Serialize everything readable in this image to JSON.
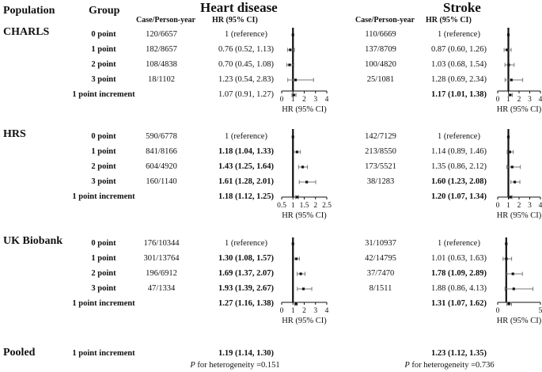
{
  "headers": {
    "population": "Population",
    "group": "Group",
    "heart_title": "Heart disease",
    "stroke_title": "Stroke",
    "case_label": "Case/Person-year",
    "hr_label": "HR (95% CI)"
  },
  "pooled": {
    "population": "Pooled",
    "group": "1 point increment",
    "heart_hr": "1.19 (1.14, 1.30)",
    "stroke_hr": "1.23 (1.12, 1.35)",
    "p_symbol": "P",
    "heart_het": " for heterogeneity =0.151",
    "stroke_het": " for heterogeneity =0.736"
  },
  "chart_data": [
    {
      "type": "forest",
      "panel": "heart-CHARLS",
      "xlabel": "HR (95% CI)",
      "xlim": [
        0,
        4
      ],
      "ticks": [
        0,
        1,
        2,
        3,
        4
      ],
      "tick_labels": [
        "0",
        "1",
        "2",
        "3",
        "4"
      ],
      "rows": [
        {
          "point": 1.0,
          "low": 1.0,
          "high": 1.0
        },
        {
          "point": 0.76,
          "low": 0.52,
          "high": 1.13
        },
        {
          "point": 0.7,
          "low": 0.45,
          "high": 1.08
        },
        {
          "point": 1.23,
          "low": 0.54,
          "high": 2.83
        },
        {
          "point": 1.07,
          "low": 0.91,
          "high": 1.27
        }
      ]
    },
    {
      "type": "forest",
      "panel": "stroke-CHARLS",
      "xlabel": "HR (95% CI)",
      "xlim": [
        0,
        4
      ],
      "ticks": [
        0,
        1,
        2,
        3,
        4
      ],
      "tick_labels": [
        "0",
        "1",
        "2",
        "3",
        "4"
      ],
      "rows": [
        {
          "point": 1.0,
          "low": 1.0,
          "high": 1.0
        },
        {
          "point": 0.87,
          "low": 0.6,
          "high": 1.26
        },
        {
          "point": 1.03,
          "low": 0.68,
          "high": 1.54
        },
        {
          "point": 1.28,
          "low": 0.69,
          "high": 2.34
        },
        {
          "point": 1.17,
          "low": 1.01,
          "high": 1.38
        }
      ]
    },
    {
      "type": "forest",
      "panel": "heart-HRS",
      "xlabel": "HR (95% CI)",
      "xlim": [
        0.5,
        2.5
      ],
      "ticks": [
        0.5,
        1.0,
        1.5,
        2.0,
        2.5
      ],
      "tick_labels": [
        "0.5",
        "1",
        "1.5",
        "2",
        "2.5"
      ],
      "rows": [
        {
          "point": 1.0,
          "low": 1.0,
          "high": 1.0
        },
        {
          "point": 1.18,
          "low": 1.04,
          "high": 1.33
        },
        {
          "point": 1.43,
          "low": 1.25,
          "high": 1.64
        },
        {
          "point": 1.61,
          "low": 1.28,
          "high": 2.01
        },
        {
          "point": 1.18,
          "low": 1.12,
          "high": 1.25
        }
      ]
    },
    {
      "type": "forest",
      "panel": "stroke-HRS",
      "xlabel": "HR (95% CI)",
      "xlim": [
        0,
        4
      ],
      "ticks": [
        0,
        1,
        2,
        3,
        4
      ],
      "tick_labels": [
        "0",
        "1",
        "2",
        "3",
        "4"
      ],
      "rows": [
        {
          "point": 1.0,
          "low": 1.0,
          "high": 1.0
        },
        {
          "point": 1.14,
          "low": 0.89,
          "high": 1.46
        },
        {
          "point": 1.35,
          "low": 0.86,
          "high": 2.12
        },
        {
          "point": 1.6,
          "low": 1.23,
          "high": 2.08
        },
        {
          "point": 1.2,
          "low": 1.07,
          "high": 1.34
        }
      ]
    },
    {
      "type": "forest",
      "panel": "heart-UKB",
      "xlabel": "HR (95% CI)",
      "xlim": [
        0,
        4
      ],
      "ticks": [
        0,
        1,
        2,
        3,
        4
      ],
      "tick_labels": [
        "0",
        "1",
        "2",
        "3",
        "4"
      ],
      "rows": [
        {
          "point": 1.0,
          "low": 1.0,
          "high": 1.0
        },
        {
          "point": 1.3,
          "low": 1.08,
          "high": 1.57
        },
        {
          "point": 1.69,
          "low": 1.37,
          "high": 2.07
        },
        {
          "point": 1.93,
          "low": 1.39,
          "high": 2.67
        },
        {
          "point": 1.27,
          "low": 1.16,
          "high": 1.38
        }
      ]
    },
    {
      "type": "forest",
      "panel": "stroke-UKB",
      "xlabel": "HR (95% CI)",
      "xlim": [
        0,
        5
      ],
      "ticks": [
        0,
        5
      ],
      "tick_labels": [
        "0",
        "5"
      ],
      "rows": [
        {
          "point": 1.0,
          "low": 1.0,
          "high": 1.0
        },
        {
          "point": 1.01,
          "low": 0.63,
          "high": 1.63
        },
        {
          "point": 1.78,
          "low": 1.09,
          "high": 2.89
        },
        {
          "point": 1.88,
          "low": 0.86,
          "high": 4.13
        },
        {
          "point": 1.31,
          "low": 1.07,
          "high": 1.62
        }
      ]
    }
  ],
  "sections": [
    {
      "name": "CHARLS",
      "rows": [
        {
          "group": "0 point",
          "heart_case": "120/6657",
          "heart_hr": "1 (reference)",
          "heart_bold": false,
          "stroke_case": "110/6669",
          "stroke_hr": "1 (reference)",
          "stroke_bold": false
        },
        {
          "group": "1 point",
          "heart_case": "182/8657",
          "heart_hr": "0.76 (0.52, 1.13)",
          "heart_bold": false,
          "stroke_case": "137/8709",
          "stroke_hr": "0.87 (0.60, 1.26)",
          "stroke_bold": false
        },
        {
          "group": "2 point",
          "heart_case": "108/4838",
          "heart_hr": "0.70 (0.45, 1.08)",
          "heart_bold": false,
          "stroke_case": "100/4820",
          "stroke_hr": "1.03 (0.68, 1.54)",
          "stroke_bold": false
        },
        {
          "group": "3 point",
          "heart_case": "18/1102",
          "heart_hr": "1.23 (0.54, 2.83)",
          "heart_bold": false,
          "stroke_case": "25/1081",
          "stroke_hr": "1.28 (0.69, 2.34)",
          "stroke_bold": false
        },
        {
          "group": "1 point increment",
          "heart_case": "",
          "heart_hr": "1.07 (0.91, 1.27)",
          "heart_bold": false,
          "stroke_case": "",
          "stroke_hr": "1.17 (1.01, 1.38)",
          "stroke_bold": true
        }
      ]
    },
    {
      "name": "HRS",
      "rows": [
        {
          "group": "0 point",
          "heart_case": "590/6778",
          "heart_hr": "1 (reference)",
          "heart_bold": false,
          "stroke_case": "142/7129",
          "stroke_hr": "1 (reference)",
          "stroke_bold": false
        },
        {
          "group": "1 point",
          "heart_case": "841/8166",
          "heart_hr": "1.18 (1.04, 1.33)",
          "heart_bold": true,
          "stroke_case": "213/8550",
          "stroke_hr": "1.14 (0.89, 1.46)",
          "stroke_bold": false
        },
        {
          "group": "2 point",
          "heart_case": "604/4920",
          "heart_hr": "1.43 (1.25, 1.64)",
          "heart_bold": true,
          "stroke_case": "173/5521",
          "stroke_hr": "1.35 (0.86, 2.12)",
          "stroke_bold": false
        },
        {
          "group": "3 point",
          "heart_case": "160/1140",
          "heart_hr": "1.61 (1.28, 2.01)",
          "heart_bold": true,
          "stroke_case": "38/1283",
          "stroke_hr": "1.60 (1.23, 2.08)",
          "stroke_bold": true
        },
        {
          "group": "1 point increment",
          "heart_case": "",
          "heart_hr": "1.18 (1.12, 1.25)",
          "heart_bold": true,
          "stroke_case": "",
          "stroke_hr": "1.20 (1.07, 1.34)",
          "stroke_bold": true
        }
      ]
    },
    {
      "name": "UK Biobank",
      "rows": [
        {
          "group": "0 point",
          "heart_case": "176/10344",
          "heart_hr": "1 (reference)",
          "heart_bold": false,
          "stroke_case": "31/10937",
          "stroke_hr": "1 (reference)",
          "stroke_bold": false
        },
        {
          "group": "1 point",
          "heart_case": "301/13764",
          "heart_hr": "1.30 (1.08, 1.57)",
          "heart_bold": true,
          "stroke_case": "42/14795",
          "stroke_hr": "1.01 (0.63, 1.63)",
          "stroke_bold": false
        },
        {
          "group": "2 point",
          "heart_case": "196/6912",
          "heart_hr": "1.69 (1.37, 2.07)",
          "heart_bold": true,
          "stroke_case": "37/7470",
          "stroke_hr": "1.78 (1.09, 2.89)",
          "stroke_bold": true
        },
        {
          "group": "3 point",
          "heart_case": "47/1334",
          "heart_hr": "1.93 (1.39, 2.67)",
          "heart_bold": true,
          "stroke_case": "8/1511",
          "stroke_hr": "1.88 (0.86, 4.13)",
          "stroke_bold": false
        },
        {
          "group": "1 point increment",
          "heart_case": "",
          "heart_hr": "1.27 (1.16, 1.38)",
          "heart_bold": true,
          "stroke_case": "",
          "stroke_hr": "1.31 (1.07, 1.62)",
          "stroke_bold": true
        }
      ]
    }
  ]
}
